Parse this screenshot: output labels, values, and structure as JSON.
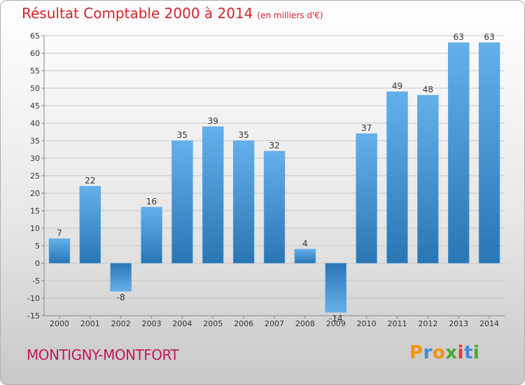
{
  "header": {
    "title": "Résultat Comptable 2000 à 2014",
    "unit": "(en milliers d'€)"
  },
  "commune": "MONTIGNY-MONTFORT",
  "logo": {
    "text": "Proxiti",
    "letter_colors": [
      "#f29400",
      "#3a8fd9",
      "#f29400",
      "#4aa832",
      "#e53935",
      "#3a8fd9",
      "#4aa832"
    ]
  },
  "colors": {
    "title": "#d2232a",
    "commune": "#c2185b",
    "bar_light": "#64b0ea",
    "bar_dark": "#2a76b5",
    "grid": "#c8c8c8",
    "text": "#333333"
  },
  "chart_data": {
    "type": "bar",
    "title": "Résultat Comptable 2000 à 2014",
    "xlabel": "",
    "ylabel": "(en milliers d'€)",
    "categories": [
      "2000",
      "2001",
      "2002",
      "2003",
      "2004",
      "2005",
      "2006",
      "2007",
      "2008",
      "2009",
      "2010",
      "2011",
      "2012",
      "2013",
      "2014"
    ],
    "values": [
      7,
      22,
      -8,
      16,
      35,
      39,
      35,
      32,
      4,
      -14,
      37,
      49,
      48,
      63,
      63
    ],
    "ylim": [
      -15,
      65
    ],
    "yticks": [
      65,
      60,
      55,
      50,
      45,
      40,
      35,
      30,
      25,
      20,
      15,
      10,
      5,
      0,
      -5,
      -10,
      -15
    ],
    "grid": true,
    "legend": "none"
  }
}
